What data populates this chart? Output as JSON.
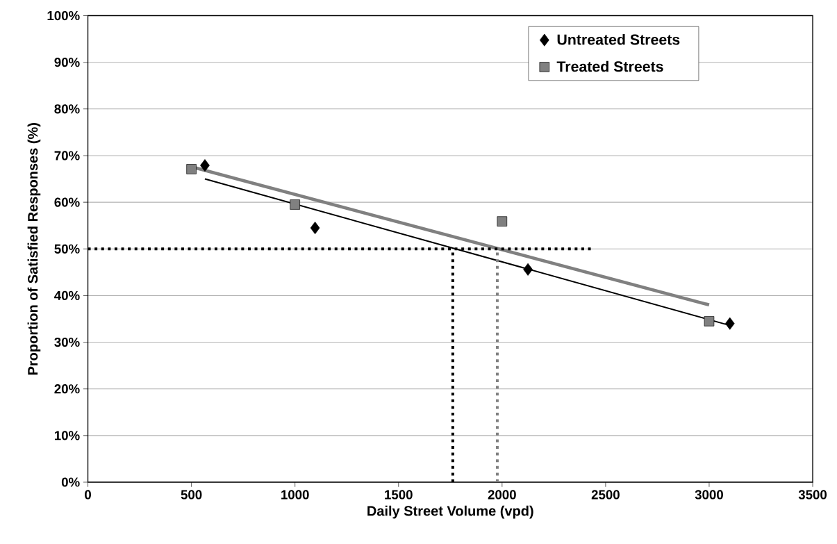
{
  "chart_data": {
    "type": "scatter",
    "xlabel": "Daily Street Volume (vpd)",
    "ylabel": "Proportion of Satisfied Responses (%)",
    "xlim": [
      0,
      3500
    ],
    "xticks": [
      0,
      500,
      1000,
      1500,
      2000,
      2500,
      3000,
      3500
    ],
    "ylim": [
      0,
      100
    ],
    "yticks": [
      {
        "value": 0,
        "label": "0%"
      },
      {
        "value": 10,
        "label": "10%"
      },
      {
        "value": 20,
        "label": "20%"
      },
      {
        "value": 30,
        "label": "30%"
      },
      {
        "value": 40,
        "label": "40%"
      },
      {
        "value": 50,
        "label": "50%"
      },
      {
        "value": 60,
        "label": "60%"
      },
      {
        "value": 70,
        "label": "70%"
      },
      {
        "value": 80,
        "label": "80%"
      },
      {
        "value": 90,
        "label": "90%"
      },
      {
        "value": 100,
        "label": "100%"
      }
    ],
    "grid": "y",
    "legend": "top right",
    "series": [
      {
        "name": "Untreated Streets",
        "color": "#000000",
        "marker": "diamond",
        "x": [
          565,
          1097,
          2125,
          3100
        ],
        "values": [
          67.9,
          54.5,
          45.6,
          34.0
        ]
      },
      {
        "name": "Treated Streets",
        "color": "#808080",
        "marker": "square",
        "x": [
          500,
          1000,
          2000,
          3000
        ],
        "values": [
          67.1,
          59.5,
          55.9,
          34.5
        ]
      },
      {
        "type": "line",
        "color": "#000000",
        "marker": "none",
        "line_style": "solid",
        "x": [
          565,
          3100
        ],
        "values": [
          65.0,
          33.6
        ]
      },
      {
        "type": "line",
        "color": "#808080",
        "marker": "none",
        "line_style": "solid",
        "x": [
          500,
          3000
        ],
        "values": [
          67.6,
          38.0
        ]
      },
      {
        "type": "line",
        "color": "#000000",
        "marker": "none",
        "line_style": "dotted",
        "x": [
          0,
          2430
        ],
        "values": [
          50,
          50
        ]
      },
      {
        "type": "line",
        "color": "#000000",
        "marker": "none",
        "line_style": "dotted",
        "x": [
          1762,
          1762
        ],
        "values": [
          0,
          50
        ]
      },
      {
        "type": "line",
        "color": "#808080",
        "marker": "none",
        "line_style": "dotted",
        "x": [
          1977,
          1977
        ],
        "values": [
          0,
          50
        ]
      }
    ]
  }
}
